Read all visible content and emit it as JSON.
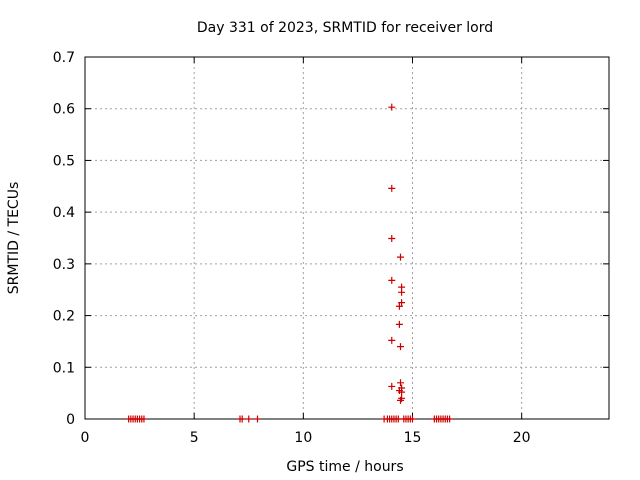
{
  "chart_data": {
    "type": "scatter",
    "title": "Day 331 of 2023, SRMTID for receiver lord",
    "xlabel": "GPS time / hours",
    "ylabel": "SRMTID / TECUs",
    "xlim": [
      0,
      24
    ],
    "ylim": [
      0,
      0.7
    ],
    "xticks": [
      0,
      5,
      10,
      15,
      20
    ],
    "xtick_labels": [
      "0",
      "5",
      "10",
      "15",
      "20"
    ],
    "yticks": [
      0,
      0.1,
      0.2,
      0.3,
      0.4,
      0.5,
      0.6,
      0.7
    ],
    "ytick_labels": [
      "0",
      "0.1",
      "0.2",
      "0.3",
      "0.4",
      "0.5",
      "0.6",
      "0.7"
    ],
    "grid": true,
    "marker": "+",
    "color": "#cc0000",
    "series": [
      {
        "name": "SRMTID",
        "points": [
          [
            14.05,
            0.603
          ],
          [
            14.05,
            0.446
          ],
          [
            14.05,
            0.349
          ],
          [
            14.45,
            0.313
          ],
          [
            14.05,
            0.268
          ],
          [
            14.5,
            0.255
          ],
          [
            14.5,
            0.245
          ],
          [
            14.5,
            0.225
          ],
          [
            14.4,
            0.218
          ],
          [
            14.4,
            0.183
          ],
          [
            14.05,
            0.152
          ],
          [
            14.45,
            0.14
          ],
          [
            14.45,
            0.07
          ],
          [
            14.05,
            0.063
          ],
          [
            14.5,
            0.06
          ],
          [
            14.4,
            0.055
          ],
          [
            14.5,
            0.052
          ],
          [
            14.5,
            0.04
          ],
          [
            14.45,
            0.036
          ],
          [
            2.0,
            0.0
          ],
          [
            2.1,
            0.0
          ],
          [
            2.2,
            0.0
          ],
          [
            2.3,
            0.0
          ],
          [
            2.4,
            0.0
          ],
          [
            2.5,
            0.0
          ],
          [
            2.6,
            0.0
          ],
          [
            2.7,
            0.0
          ],
          [
            7.1,
            0.0
          ],
          [
            7.2,
            0.0
          ],
          [
            7.5,
            0.0
          ],
          [
            7.9,
            0.0
          ],
          [
            13.7,
            0.0
          ],
          [
            13.85,
            0.0
          ],
          [
            13.95,
            0.0
          ],
          [
            14.05,
            0.0
          ],
          [
            14.15,
            0.0
          ],
          [
            14.25,
            0.0
          ],
          [
            14.35,
            0.0
          ],
          [
            14.6,
            0.0
          ],
          [
            14.7,
            0.0
          ],
          [
            14.8,
            0.0
          ],
          [
            14.9,
            0.0
          ],
          [
            15.0,
            0.0
          ],
          [
            16.0,
            0.0
          ],
          [
            16.1,
            0.0
          ],
          [
            16.2,
            0.0
          ],
          [
            16.3,
            0.0
          ],
          [
            16.4,
            0.0
          ],
          [
            16.5,
            0.0
          ],
          [
            16.6,
            0.0
          ],
          [
            16.7,
            0.0
          ]
        ]
      }
    ]
  }
}
